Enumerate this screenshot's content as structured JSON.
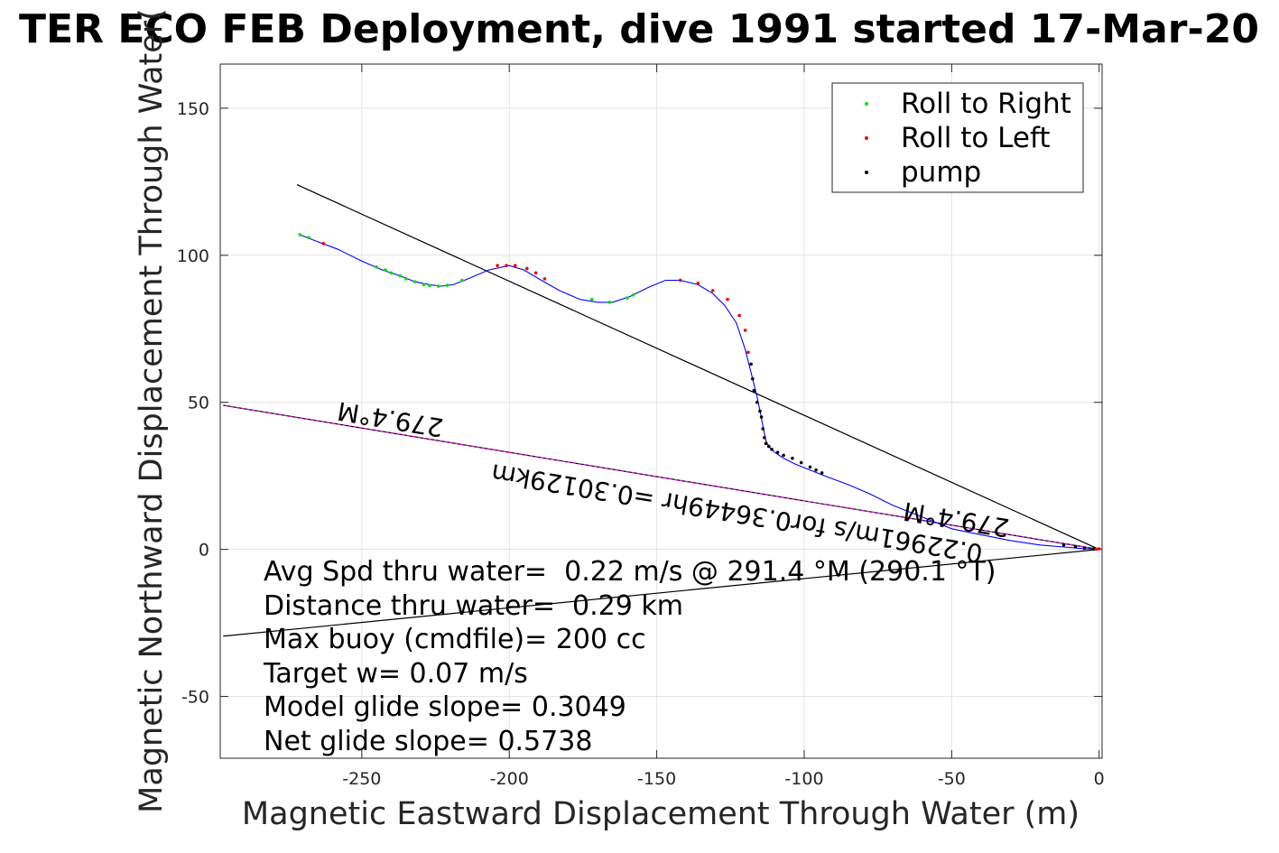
{
  "chart_data": {
    "type": "line",
    "title": "TER ECO FEB Deployment, dive 1991 started 17-Mar-20",
    "xlabel": "Magnetic Eastward Displacement Through Water (m)",
    "ylabel": "Magnetic Northward Displacement Through Water(",
    "xlim": [
      -298,
      1
    ],
    "ylim": [
      -71,
      165
    ],
    "xticks": [
      -250,
      -200,
      -150,
      -100,
      -50,
      0
    ],
    "yticks": [
      150,
      100,
      50,
      0,
      -50
    ],
    "xtick_labels": [
      "-250",
      "-200",
      "-150",
      "-100",
      "-50",
      "0"
    ],
    "ytick_labels": [
      "150",
      "100",
      "50",
      "0",
      "-50"
    ],
    "grid": true,
    "legend": {
      "placement": "top-right",
      "entries": [
        {
          "label": "Roll to Right",
          "color": "#00dd00",
          "marker": "dot"
        },
        {
          "label": "Roll to Left",
          "color": "#ee0000",
          "marker": "dot"
        },
        {
          "label": "pump",
          "color": "#000000",
          "marker": "dot"
        }
      ]
    },
    "track": {
      "name": "",
      "color": "#0000ff",
      "x": [
        -271,
        -266,
        -258,
        -250,
        -243,
        -237,
        -232,
        -227,
        -223,
        -219,
        -214,
        -207,
        -200,
        -195,
        -190,
        -183,
        -176,
        -170,
        -165,
        -159,
        -153,
        -147,
        -142,
        -136,
        -131,
        -127,
        -123,
        -120,
        -118,
        -116,
        -115,
        -114,
        -113,
        -112,
        -110,
        -107,
        -103,
        -98,
        -93,
        -85,
        -78,
        -70,
        -60,
        -50,
        -40,
        -30,
        -20,
        -12,
        -6,
        -2,
        0
      ],
      "y": [
        107,
        105,
        102,
        98,
        95,
        93,
        91,
        90,
        89.5,
        90,
        92,
        95,
        96.5,
        95,
        92,
        88,
        85,
        84,
        84,
        86,
        89,
        91.5,
        91.5,
        90,
        87,
        83,
        77,
        68,
        60,
        52,
        47,
        42,
        37,
        35,
        33,
        31,
        29,
        27,
        25,
        22,
        19,
        15,
        11,
        7,
        5,
        3,
        1.5,
        0.8,
        0.3,
        0.1,
        0
      ],
      "roll_right": [
        [
          -271,
          107
        ],
        [
          -268,
          106
        ],
        [
          -245,
          96
        ],
        [
          -242,
          95
        ],
        [
          -240,
          94
        ],
        [
          -237,
          93
        ],
        [
          -235,
          92
        ],
        [
          -232,
          91
        ],
        [
          -229,
          90
        ],
        [
          -227,
          89.7
        ],
        [
          -224,
          89.5
        ],
        [
          -221,
          89.8
        ],
        [
          -216,
          91.5
        ],
        [
          -172,
          85
        ],
        [
          -166,
          84
        ],
        [
          -160,
          85.5
        ],
        [
          -158,
          86.5
        ]
      ],
      "roll_left": [
        [
          -263,
          104
        ],
        [
          -204,
          96.5
        ],
        [
          -201,
          96.5
        ],
        [
          -198,
          96.5
        ],
        [
          -194,
          95.5
        ],
        [
          -191,
          94
        ],
        [
          -188,
          92
        ],
        [
          -142,
          91.5
        ],
        [
          -136,
          90.5
        ],
        [
          -131,
          88
        ],
        [
          -126,
          85
        ],
        [
          -122,
          79.5
        ],
        [
          -120,
          74.5
        ],
        [
          -119,
          67
        ],
        [
          -1,
          0.1
        ],
        [
          0,
          0.2
        ]
      ],
      "pump": [
        [
          -118,
          63
        ],
        [
          -117.5,
          58
        ],
        [
          -117,
          54
        ],
        [
          -116,
          50
        ],
        [
          -115,
          47
        ],
        [
          -114.5,
          45
        ],
        [
          -114,
          41
        ],
        [
          -113.5,
          38
        ],
        [
          -113,
          36
        ],
        [
          -112,
          35
        ],
        [
          -111,
          34
        ],
        [
          -109,
          33
        ],
        [
          -107,
          32
        ],
        [
          -104,
          31
        ],
        [
          -101,
          29.5
        ],
        [
          -98,
          28
        ],
        [
          -96,
          27
        ],
        [
          -94,
          26
        ],
        [
          -12,
          1.5
        ],
        [
          -8,
          0.9
        ],
        [
          -5,
          0.4
        ],
        [
          -2,
          0.1
        ]
      ]
    },
    "reference_lines": [
      {
        "from": [
          0,
          0
        ],
        "to": [
          -272,
          124
        ],
        "color": "#000000"
      },
      {
        "from": [
          0,
          0
        ],
        "to": [
          -297,
          49
        ],
        "color": "#000000"
      },
      {
        "from": [
          0,
          0
        ],
        "to": [
          -297,
          49
        ],
        "color": "#ff00ff",
        "dashed": true
      },
      {
        "from": [
          0,
          0
        ],
        "to": [
          -297,
          -29.5
        ],
        "color": "#000000"
      }
    ],
    "annotations": {
      "heading_upper": "279.4°M",
      "heading_lower": "279.4°M",
      "speed_label": "0.22961m/s for0.36449hr =0.30129km"
    },
    "info_lines": [
      "Avg Spd thru water=  0.22 m/s @ 291.4 °M (290.1 °T)",
      "Distance thru water=  0.29 km",
      "Max buoy (cmdfile)= 200 cc",
      "Target w= 0.07 m/s",
      "Model glide slope= 0.3049",
      "Net glide slope= 0.5738"
    ]
  }
}
